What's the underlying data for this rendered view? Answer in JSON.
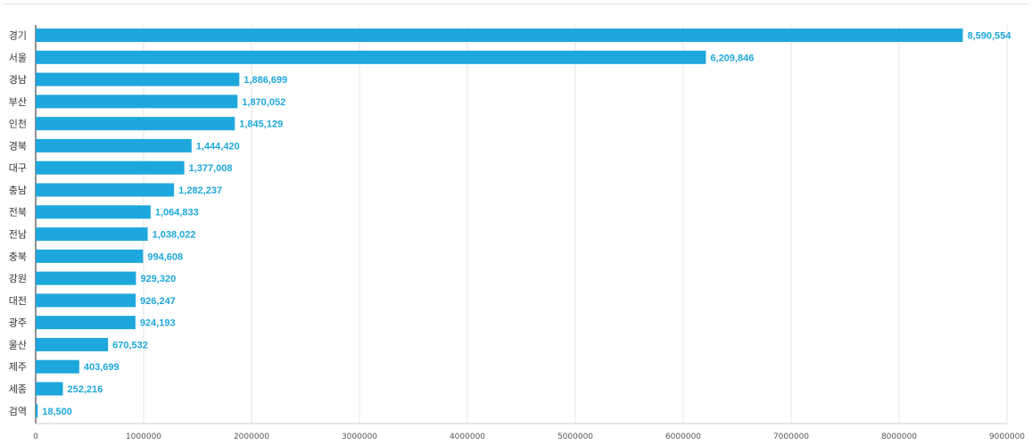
{
  "chart_data": {
    "type": "bar",
    "orientation": "horizontal",
    "categories": [
      "경기",
      "서울",
      "경남",
      "부산",
      "인천",
      "경북",
      "대구",
      "충남",
      "전북",
      "전남",
      "충북",
      "강원",
      "대전",
      "광주",
      "울산",
      "제주",
      "세종",
      "검역"
    ],
    "values": [
      8590554,
      6209846,
      1886699,
      1870052,
      1845129,
      1444420,
      1377008,
      1282237,
      1064833,
      1038022,
      994608,
      929320,
      926247,
      924193,
      670532,
      403699,
      252216,
      18500
    ],
    "value_labels": [
      "8,590,554",
      "6,209,846",
      "1,886,699",
      "1,870,052",
      "1,845,129",
      "1,444,420",
      "1,377,008",
      "1,282,237",
      "1,064,833",
      "1,038,022",
      "994,608",
      "929,320",
      "926,247",
      "924,193",
      "670,532",
      "403,699",
      "252,216",
      "18,500"
    ],
    "xlim": [
      0,
      9000000
    ],
    "x_ticks": [
      "0",
      "1000000",
      "2000000",
      "3000000",
      "4000000",
      "5000000",
      "6000000",
      "7000000",
      "8000000",
      "9000000"
    ],
    "grid": "vertical",
    "bar_color": "#1ea7dc",
    "label_color": "#1ea7dc"
  }
}
